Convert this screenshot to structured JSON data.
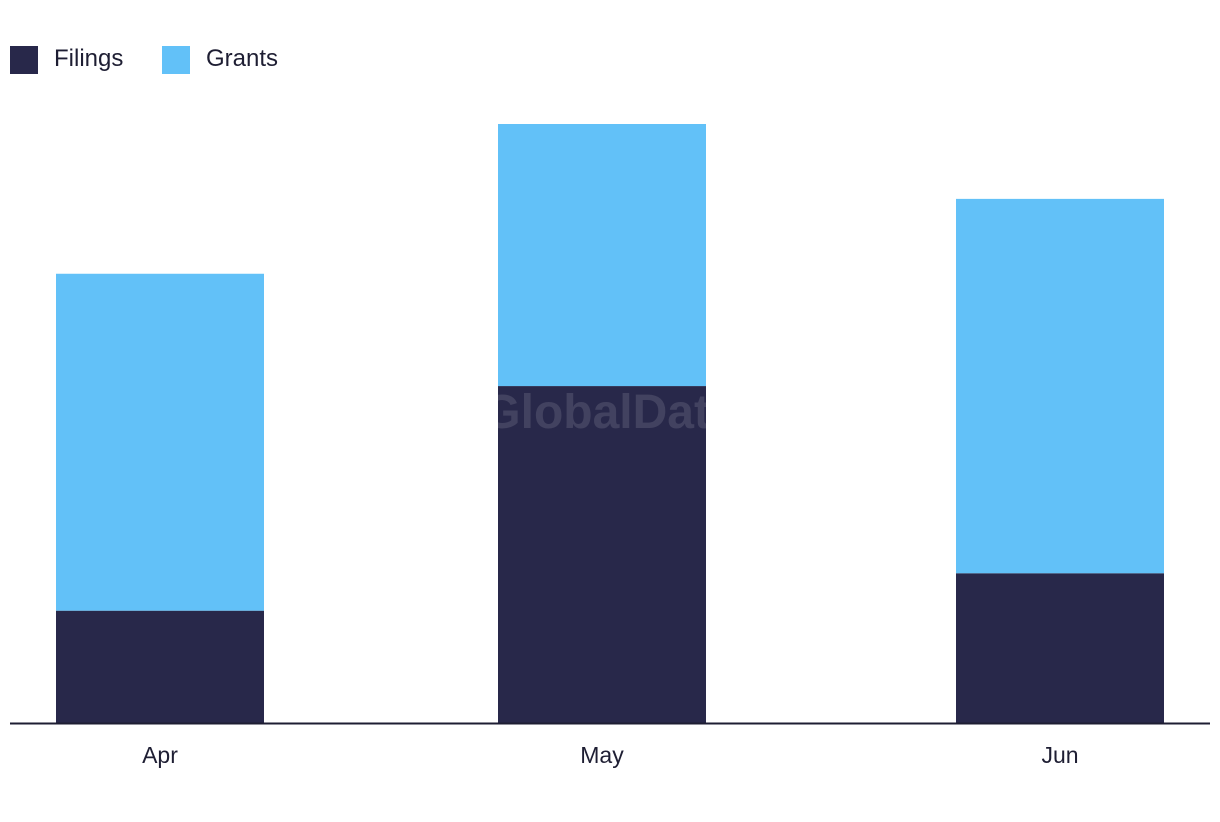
{
  "legend": {
    "position": "top-left"
  },
  "watermark": "GlobalData",
  "colors": {
    "axis": "#1e1e33",
    "text": "#1e1e33",
    "background": "#ffffff"
  },
  "chart_data": {
    "type": "bar",
    "stacked": true,
    "categories": [
      "Apr",
      "May",
      "Jun"
    ],
    "series": [
      {
        "name": "Filings",
        "color": "#28284a",
        "values": [
          3,
          9,
          4
        ]
      },
      {
        "name": "Grants",
        "color": "#62c1f8",
        "values": [
          9,
          7,
          10
        ]
      }
    ],
    "ylim": [
      0,
      16
    ],
    "grid": false,
    "xlabel": "",
    "ylabel": ""
  }
}
